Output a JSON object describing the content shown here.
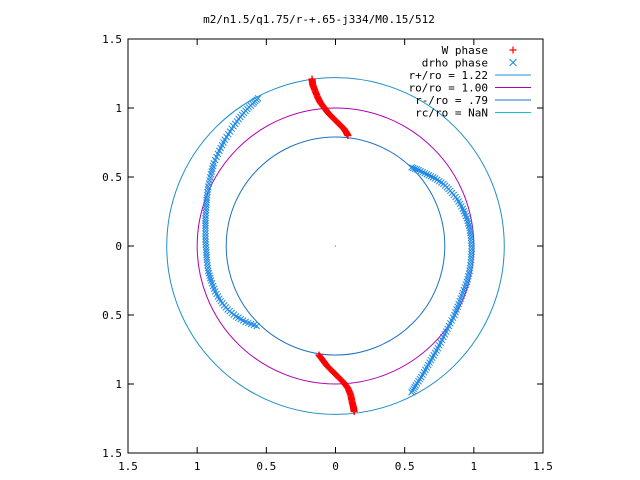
{
  "chart_data": {
    "type": "scatter",
    "title": "m2/n1.5/q1.75/r-+.65-j334/M0.15/512",
    "xlabel": "",
    "ylabel": "",
    "xlim": [
      -1.5,
      1.5
    ],
    "ylim": [
      -1.5,
      1.5
    ],
    "grid": false,
    "legend_position": "top-right",
    "x_ticks": [
      {
        "value": -1.5,
        "label": "1.5"
      },
      {
        "value": -1,
        "label": "1"
      },
      {
        "value": -0.5,
        "label": "0.5"
      },
      {
        "value": 0,
        "label": "0"
      },
      {
        "value": 0.5,
        "label": "0.5"
      },
      {
        "value": 1,
        "label": "1"
      },
      {
        "value": 1.5,
        "label": "1.5"
      }
    ],
    "y_ticks": [
      {
        "value": 1.5,
        "label": "1.5"
      },
      {
        "value": 1,
        "label": "1"
      },
      {
        "value": 0.5,
        "label": "0.5"
      },
      {
        "value": 0,
        "label": "0"
      },
      {
        "value": -0.5,
        "label": "0.5"
      },
      {
        "value": -1,
        "label": "1"
      },
      {
        "value": -1.5,
        "label": "1.5"
      }
    ],
    "circles": [
      {
        "name": "r+/ro = 1.22",
        "radius": 1.22,
        "color": "#1e90c8"
      },
      {
        "name": "ro/ro = 1.00",
        "radius": 1.0,
        "color": "#b000b0"
      },
      {
        "name": "r-/ro = .79",
        "radius": 0.79,
        "color": "#1e72c0"
      },
      {
        "name": "rc/ro = NaN",
        "radius": null,
        "color": "#17c0d0"
      }
    ],
    "series": [
      {
        "name": "W phase",
        "marker": "+",
        "color": "#ff0000",
        "branches": [
          {
            "points": [
              [
                -0.17,
                1.21
              ],
              [
                -0.165,
                1.17
              ],
              [
                -0.15,
                1.13
              ],
              [
                -0.13,
                1.08
              ],
              [
                -0.11,
                1.04
              ],
              [
                -0.08,
                1.0
              ],
              [
                -0.05,
                0.96
              ],
              [
                -0.01,
                0.92
              ],
              [
                0.03,
                0.88
              ],
              [
                0.06,
                0.85
              ],
              [
                0.08,
                0.82
              ],
              [
                0.09,
                0.8
              ]
            ]
          },
          {
            "points": [
              [
                -0.12,
                -0.79
              ],
              [
                -0.09,
                -0.83
              ],
              [
                -0.06,
                -0.87
              ],
              [
                -0.02,
                -0.91
              ],
              [
                0.02,
                -0.95
              ],
              [
                0.06,
                -0.99
              ],
              [
                0.09,
                -1.03
              ],
              [
                0.11,
                -1.08
              ],
              [
                0.12,
                -1.13
              ],
              [
                0.13,
                -1.17
              ],
              [
                0.135,
                -1.2
              ]
            ]
          }
        ]
      },
      {
        "name": "drho phase",
        "marker": "x",
        "color": "#1e88e5",
        "branches": [
          {
            "points": [
              [
                -0.56,
                1.07
              ],
              [
                -0.6,
                1.03
              ],
              [
                -0.65,
                0.98
              ],
              [
                -0.7,
                0.92
              ],
              [
                -0.75,
                0.85
              ],
              [
                -0.8,
                0.77
              ],
              [
                -0.84,
                0.69
              ],
              [
                -0.88,
                0.6
              ],
              [
                -0.9,
                0.52
              ],
              [
                -0.92,
                0.43
              ],
              [
                -0.93,
                0.35
              ],
              [
                -0.935,
                0.28
              ],
              [
                -0.94,
                0.2
              ],
              [
                -0.94,
                0.13
              ],
              [
                -0.94,
                0.05
              ],
              [
                -0.935,
                -0.03
              ],
              [
                -0.93,
                -0.1
              ],
              [
                -0.92,
                -0.18
              ],
              [
                -0.9,
                -0.25
              ],
              [
                -0.87,
                -0.33
              ],
              [
                -0.83,
                -0.4
              ],
              [
                -0.78,
                -0.46
              ],
              [
                -0.72,
                -0.51
              ],
              [
                -0.65,
                -0.55
              ],
              [
                -0.57,
                -0.58
              ]
            ]
          },
          {
            "points": [
              [
                0.55,
                0.57
              ],
              [
                0.6,
                0.55
              ],
              [
                0.66,
                0.52
              ],
              [
                0.72,
                0.49
              ],
              [
                0.78,
                0.45
              ],
              [
                0.83,
                0.4
              ],
              [
                0.88,
                0.34
              ],
              [
                0.92,
                0.27
              ],
              [
                0.95,
                0.2
              ],
              [
                0.97,
                0.13
              ],
              [
                0.98,
                0.06
              ],
              [
                0.985,
                -0.02
              ],
              [
                0.98,
                -0.1
              ],
              [
                0.97,
                -0.18
              ],
              [
                0.95,
                -0.26
              ],
              [
                0.92,
                -0.34
              ],
              [
                0.89,
                -0.42
              ],
              [
                0.86,
                -0.5
              ],
              [
                0.82,
                -0.58
              ],
              [
                0.78,
                -0.66
              ],
              [
                0.74,
                -0.74
              ],
              [
                0.7,
                -0.81
              ],
              [
                0.66,
                -0.88
              ],
              [
                0.62,
                -0.95
              ],
              [
                0.58,
                -1.01
              ],
              [
                0.55,
                -1.06
              ]
            ]
          }
        ]
      }
    ]
  }
}
